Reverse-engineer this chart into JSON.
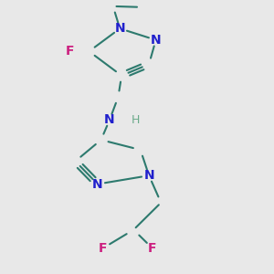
{
  "bg_color": "#e8e8e8",
  "bond_color": "#2d7a6e",
  "nitrogen_color": "#2020cc",
  "fluorine_color": "#cc2080",
  "hydrogen_color": "#6aaa8a",
  "line_width": 1.5,
  "xlim": [
    0.1,
    0.9
  ],
  "ylim": [
    0.02,
    0.98
  ]
}
